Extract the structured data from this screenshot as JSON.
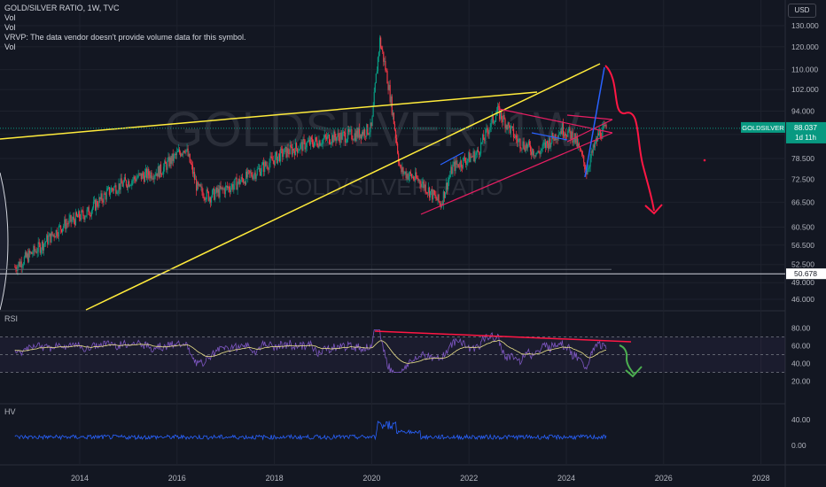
{
  "header": {
    "title": "GOLD/SILVER RATIO, 1W, TVC",
    "legend_lines": [
      "Vol",
      "Vol",
      "VRVP: The data vendor doesn't provide volume data for this symbol.",
      "Vol"
    ],
    "currency_button": "USD"
  },
  "watermark": {
    "symbol": "GOLDSILVER, 1W",
    "name": "GOLD/SILVER RATIO"
  },
  "price_badge": {
    "symbol": "GOLDSILVER",
    "value": "88.037",
    "countdown": "1d 11h",
    "color": "#089981"
  },
  "level_badge": {
    "value": "50.678"
  },
  "panes": {
    "rsi_label": "RSI",
    "hv_label": "HV"
  },
  "colors": {
    "up": "#089981",
    "down": "#f23645",
    "yellow": "#ffeb3b",
    "pink": "#e91e63",
    "blue": "#2962ff",
    "red": "#ff1744",
    "green": "#4caf50",
    "rsi": "#7e57c2",
    "hv": "#2962ff"
  },
  "chart_data": {
    "type": "candlestick",
    "title": "GOLD/SILVER RATIO, 1W, TVC",
    "x_ticks": [
      "2014",
      "2016",
      "2018",
      "2020",
      "2022",
      "2024",
      "2026",
      "2028"
    ],
    "price_axis_ticks": [
      "130.000",
      "120.000",
      "110.000",
      "102.000",
      "94.000",
      "86.000",
      "78.500",
      "72.500",
      "66.500",
      "60.500",
      "56.500",
      "52.500",
      "49.000",
      "46.000"
    ],
    "price_scale": "log",
    "last_price": 88.037,
    "horizontal_level": 50.678,
    "rsi": {
      "ticks": [
        "80.00",
        "60.00",
        "40.00",
        "20.00"
      ],
      "upper_band": 70,
      "lower_band": 30
    },
    "hv": {
      "ticks": [
        "40.00",
        "0.00"
      ]
    },
    "price_path": [
      [
        "2012-09",
        52
      ],
      [
        "2013-03",
        56
      ],
      [
        "2013-09",
        61
      ],
      [
        "2014-03",
        64
      ],
      [
        "2014-09",
        70
      ],
      [
        "2015-03",
        73
      ],
      [
        "2015-09",
        75
      ],
      [
        "2016-03",
        82
      ],
      [
        "2016-06",
        70
      ],
      [
        "2016-09",
        68
      ],
      [
        "2017-03",
        71
      ],
      [
        "2017-09",
        75
      ],
      [
        "2018-03",
        80
      ],
      [
        "2018-09",
        83
      ],
      [
        "2019-03",
        85
      ],
      [
        "2019-09",
        86
      ],
      [
        "2020-01",
        88
      ],
      [
        "2020-03",
        123
      ],
      [
        "2020-05",
        105
      ],
      [
        "2020-08",
        75
      ],
      [
        "2021-01",
        72
      ],
      [
        "2021-06",
        66
      ],
      [
        "2021-09",
        76
      ],
      [
        "2022-03",
        80
      ],
      [
        "2022-08",
        94
      ],
      [
        "2023-01",
        84
      ],
      [
        "2023-06",
        80
      ],
      [
        "2023-12",
        88
      ],
      [
        "2024-03",
        85
      ],
      [
        "2024-06",
        75
      ],
      [
        "2024-09",
        86
      ],
      [
        "2024-11",
        88
      ]
    ]
  }
}
